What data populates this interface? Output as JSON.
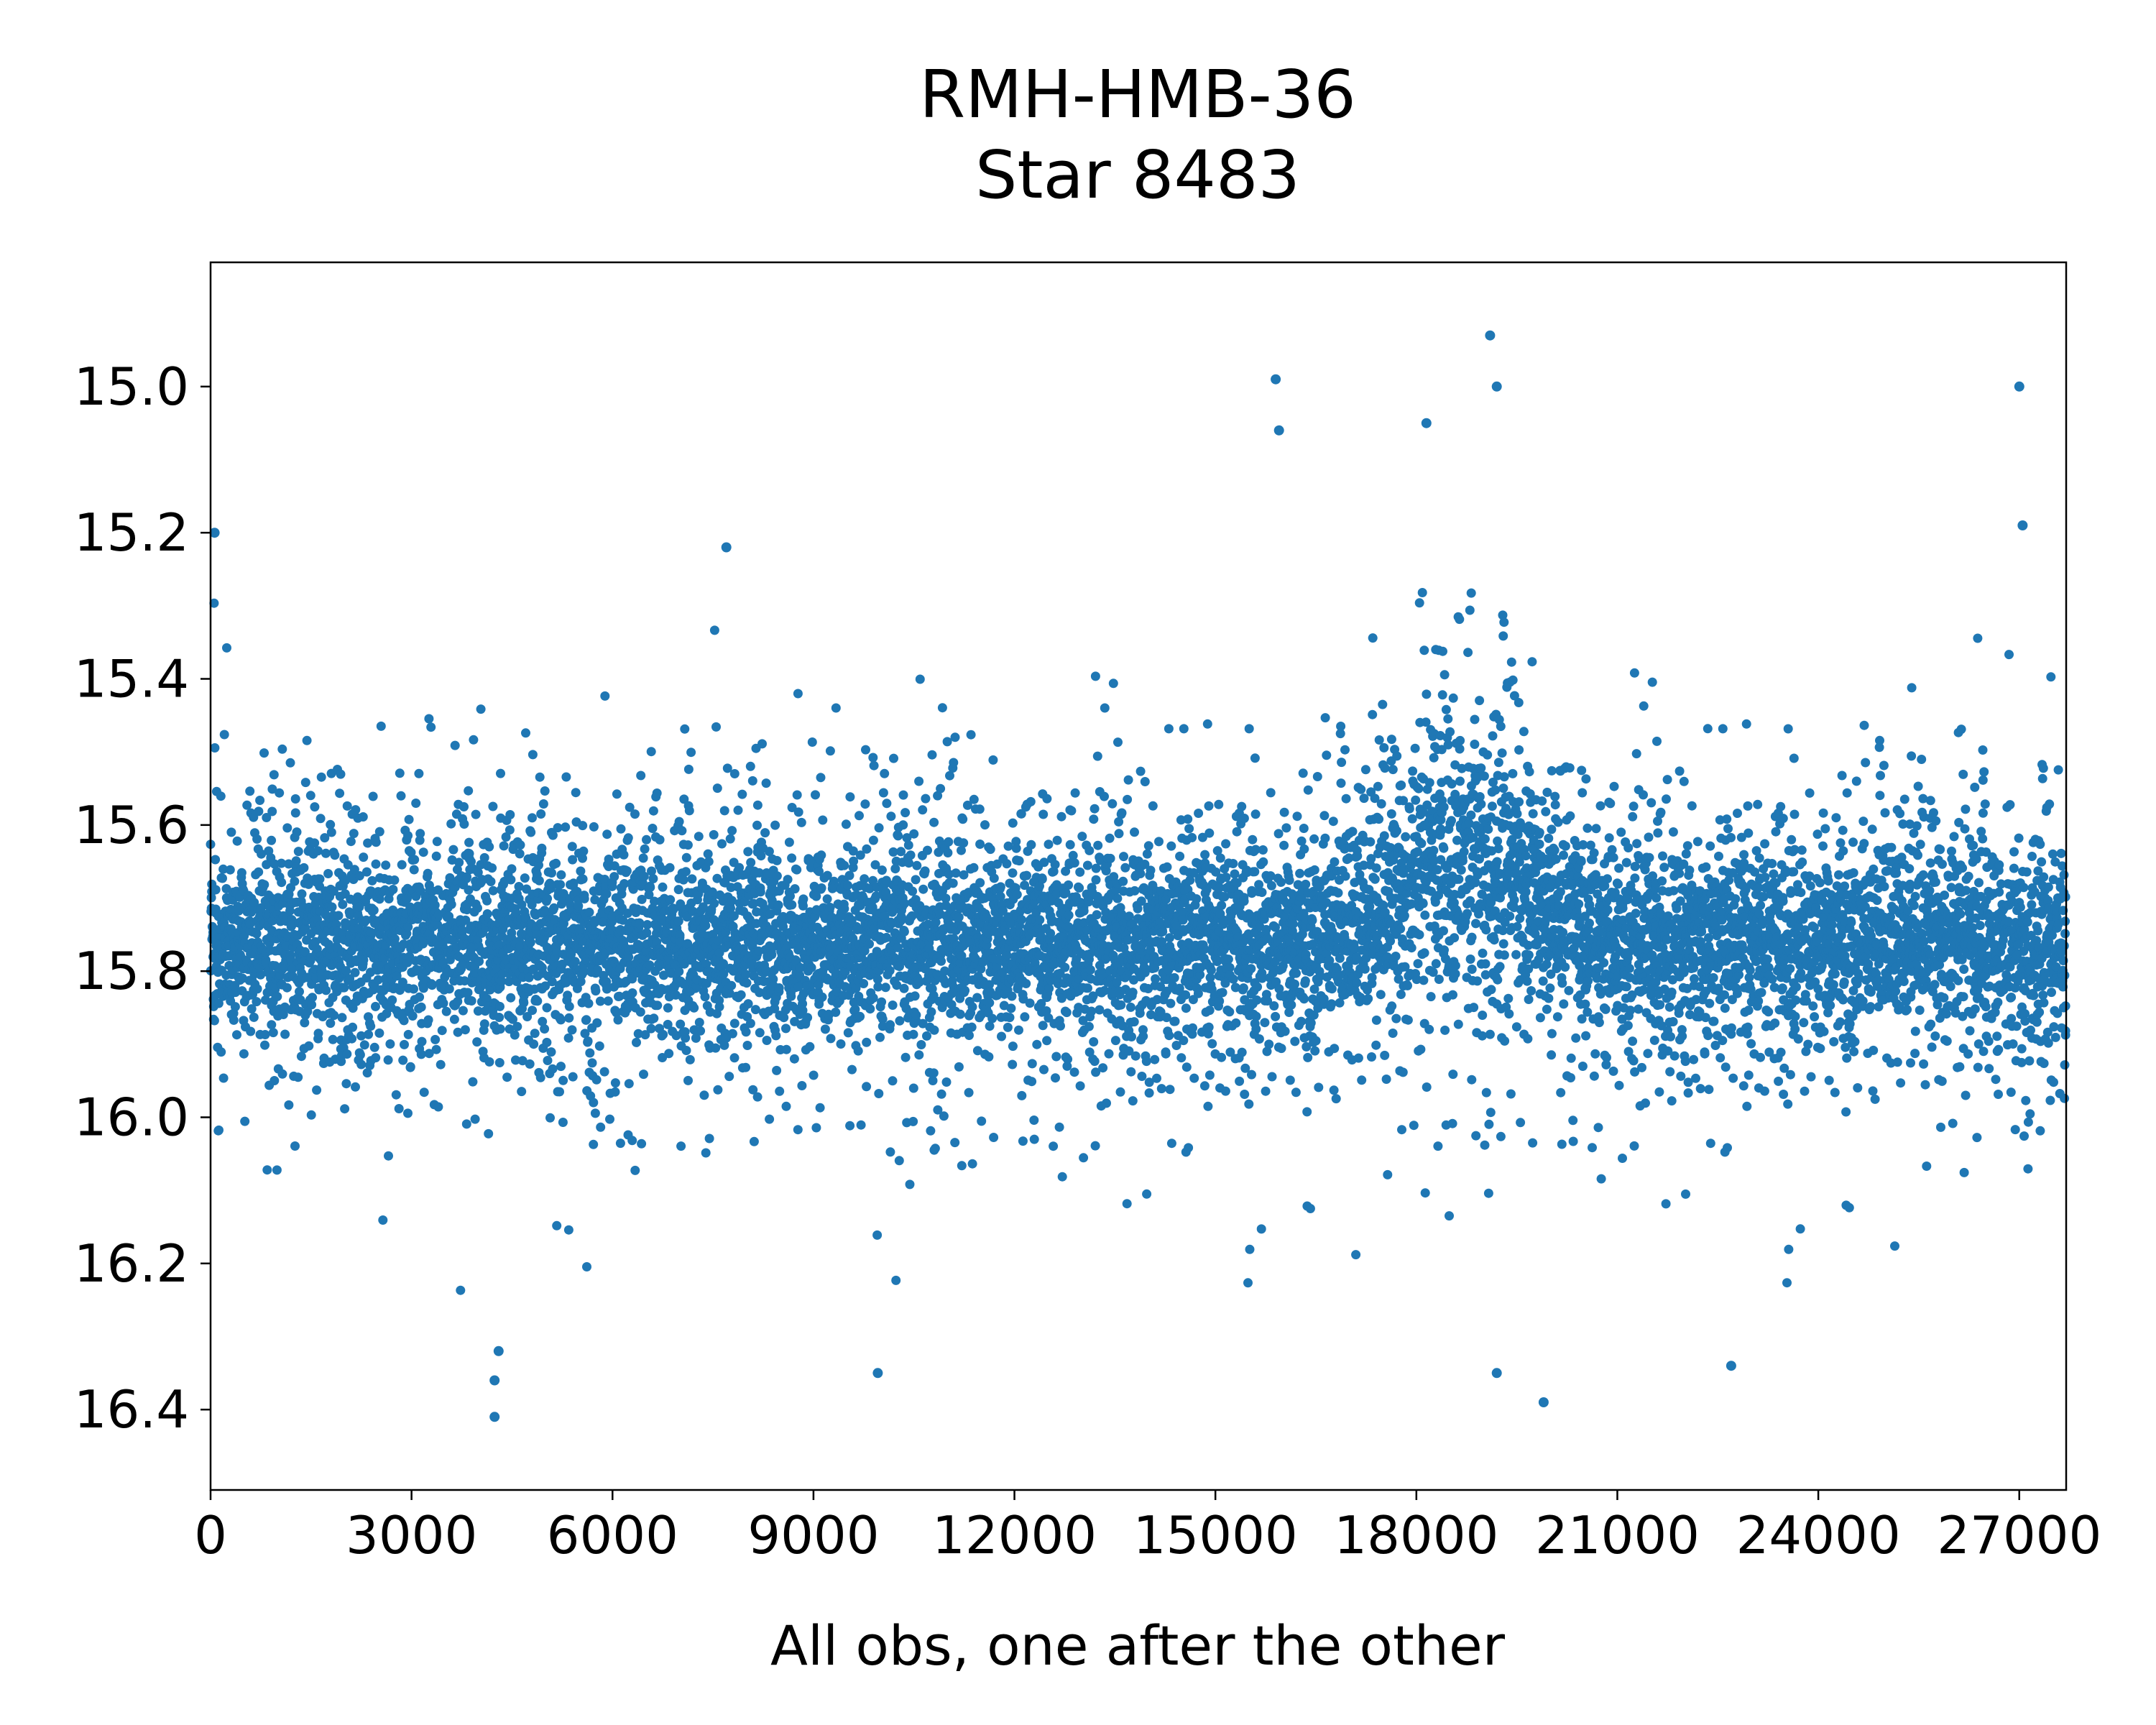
{
  "chart_data": {
    "type": "scatter",
    "title_line1": "RMH-HMB-36",
    "title_line2": "Star 8483",
    "xlabel": "All obs, one after the other",
    "ylabel": "",
    "xlim": [
      0,
      27700
    ],
    "ylim": [
      16.51,
      14.83
    ],
    "y_inverted": true,
    "grid": false,
    "legend": "none",
    "x_ticks": [
      "0",
      "3000",
      "6000",
      "9000",
      "12000",
      "15000",
      "18000",
      "21000",
      "24000",
      "27000"
    ],
    "y_ticks": [
      "15.0",
      "15.2",
      "15.4",
      "15.6",
      "15.8",
      "16.0",
      "16.2",
      "16.4"
    ],
    "marker_color": "#1f77b4",
    "series": [
      {
        "n_points": 27700,
        "core_center": 15.76,
        "core_half_width": 0.08,
        "typical_band": [
          15.4,
          16.0
        ],
        "outliers": [
          {
            "x": 60,
            "y": 15.2
          },
          {
            "x": 4240,
            "y": 16.41
          },
          {
            "x": 4240,
            "y": 16.36
          },
          {
            "x": 4300,
            "y": 16.32
          },
          {
            "x": 7700,
            "y": 15.22
          },
          {
            "x": 9960,
            "y": 16.35
          },
          {
            "x": 15900,
            "y": 14.99
          },
          {
            "x": 15950,
            "y": 15.06
          },
          {
            "x": 18150,
            "y": 15.05
          },
          {
            "x": 19100,
            "y": 14.93
          },
          {
            "x": 19200,
            "y": 15.0
          },
          {
            "x": 19200,
            "y": 16.35
          },
          {
            "x": 19900,
            "y": 16.39
          },
          {
            "x": 22700,
            "y": 16.34
          },
          {
            "x": 27000,
            "y": 15.0
          },
          {
            "x": 27050,
            "y": 15.19
          }
        ]
      }
    ]
  }
}
